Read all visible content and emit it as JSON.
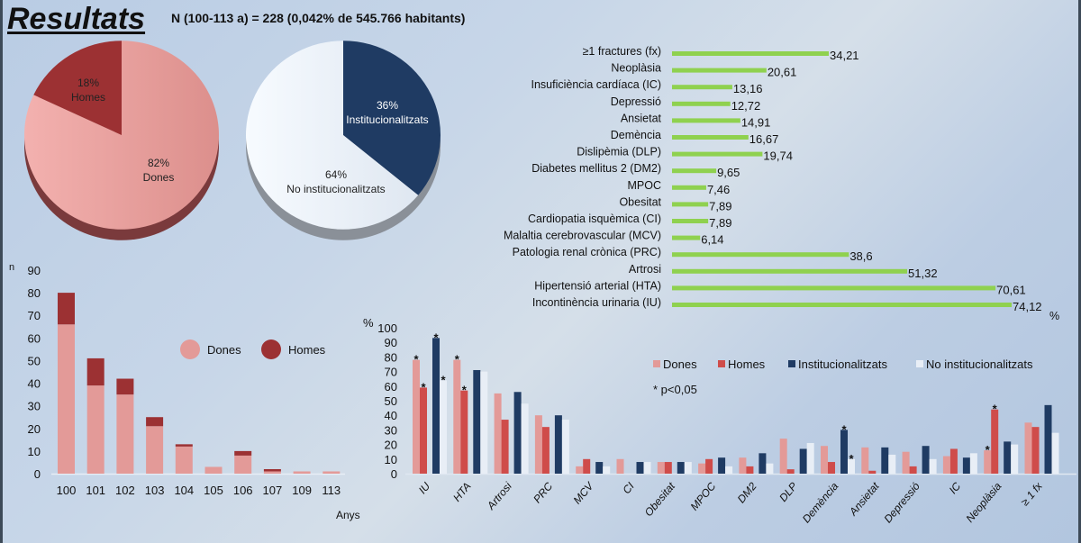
{
  "header": {
    "title": "Resultats",
    "subtitle": "N (100-113 a) = 228 (0,042% de 545.766 habitants)"
  },
  "colors": {
    "dones": "#e39a98",
    "homes": "#9c3133",
    "homes_grouped": "#cf4c4a",
    "inst": "#1f3b63",
    "noinst": "#e8eef6",
    "green": "#8fd14f"
  },
  "chart_data": [
    {
      "type": "pie",
      "title": "",
      "slices": [
        {
          "label": "Homes",
          "value": 18,
          "pct_label": "18%"
        },
        {
          "label": "Dones",
          "value": 82,
          "pct_label": "82%"
        }
      ]
    },
    {
      "type": "pie",
      "title": "",
      "slices": [
        {
          "label": "Institucionalitzats",
          "value": 36,
          "pct_label": "36%"
        },
        {
          "label": "No institucionalitzats",
          "value": 64,
          "pct_label": "64%"
        }
      ]
    },
    {
      "type": "bar",
      "orientation": "horizontal",
      "xlabel": "%",
      "categories": [
        "≥1 fractures (fx)",
        "Neoplàsia",
        "Insuficiència cardíaca (IC)",
        "Depressió",
        "Ansietat",
        "Demència",
        "Dislipèmia (DLP)",
        "Diabetes mellitus 2 (DM2)",
        "MPOC",
        "Obesitat",
        "Cardiopatia isquèmica (CI)",
        "Malaltia cerebrovascular (MCV)",
        "Patologia renal crònica (PRC)",
        "Artrosi",
        "Hipertensió arterial (HTA)",
        "Incontinència urinaria (IU)"
      ],
      "values": [
        34.21,
        20.61,
        13.16,
        12.72,
        14.91,
        16.67,
        19.74,
        9.65,
        7.46,
        7.89,
        7.89,
        6.14,
        38.6,
        51.32,
        70.61,
        74.12
      ],
      "value_labels": [
        "34,21",
        "20,61",
        "13,16",
        "12,72",
        "14,91",
        "16,67",
        "19,74",
        "9,65",
        "7,46",
        "7,89",
        "7,89",
        "6,14",
        "38,6",
        "51,32",
        "70,61",
        "74,12"
      ],
      "xlim": [
        0,
        80
      ]
    },
    {
      "type": "bar",
      "stacked": true,
      "ylabel": "n",
      "xlabel": "Anys",
      "categories": [
        "100",
        "101",
        "102",
        "103",
        "104",
        "105",
        "106",
        "107",
        "109",
        "113"
      ],
      "series": [
        {
          "name": "Dones",
          "values": [
            66,
            39,
            35,
            21,
            12,
            3,
            8,
            1,
            1,
            1
          ]
        },
        {
          "name": "Homes",
          "values": [
            14,
            12,
            7,
            4,
            1,
            0,
            2,
            1,
            0,
            0
          ]
        }
      ],
      "ylim": [
        0,
        90
      ],
      "yticks": [
        "0",
        "10",
        "20",
        "30",
        "40",
        "50",
        "60",
        "70",
        "80",
        "90"
      ],
      "legend": [
        "Dones",
        "Homes"
      ]
    },
    {
      "type": "bar",
      "ylabel": "%",
      "categories": [
        "IU",
        "HTA",
        "Artrosi",
        "PRC",
        "MCV",
        "CI",
        "Obesitat",
        "MPOC",
        "DM2",
        "DLP",
        "Demència",
        "Ansietat",
        "Depressió",
        "IC",
        "Neoplàsia",
        "≥ 1 fx"
      ],
      "series": [
        {
          "name": "Dones",
          "values": [
            78,
            78,
            55,
            40,
            5,
            10,
            8,
            7,
            11,
            24,
            19,
            18,
            15,
            12,
            16,
            35
          ],
          "significant": [
            true,
            true,
            false,
            false,
            false,
            false,
            false,
            false,
            false,
            false,
            false,
            false,
            false,
            false,
            true,
            false
          ]
        },
        {
          "name": "Homes",
          "values": [
            59,
            57,
            37,
            32,
            10,
            0,
            8,
            10,
            5,
            3,
            8,
            2,
            5,
            17,
            44,
            32
          ],
          "significant": [
            true,
            true,
            false,
            false,
            false,
            false,
            false,
            false,
            false,
            false,
            false,
            false,
            false,
            false,
            true,
            false
          ]
        },
        {
          "name": "Institucionalitzats",
          "values": [
            93,
            71,
            56,
            40,
            8,
            8,
            8,
            11,
            14,
            17,
            30,
            18,
            19,
            11,
            22,
            47
          ],
          "significant": [
            true,
            false,
            false,
            false,
            false,
            false,
            false,
            false,
            false,
            false,
            true,
            false,
            false,
            false,
            false,
            false
          ]
        },
        {
          "name": "No institucionalitzats",
          "values": [
            64,
            70,
            48,
            37,
            5,
            8,
            8,
            5,
            7,
            21,
            10,
            13,
            10,
            14,
            20,
            28
          ],
          "significant": [
            true,
            false,
            false,
            false,
            false,
            false,
            false,
            false,
            false,
            false,
            true,
            false,
            false,
            false,
            false,
            false
          ]
        }
      ],
      "ylim": [
        0,
        100
      ],
      "yticks": [
        "0",
        "10",
        "20",
        "30",
        "40",
        "50",
        "60",
        "70",
        "80",
        "90",
        "100"
      ],
      "legend": [
        "Dones",
        "Homes",
        "Institucionalitzats",
        "No institucionalitzats"
      ],
      "note": "* p<0,05"
    }
  ]
}
